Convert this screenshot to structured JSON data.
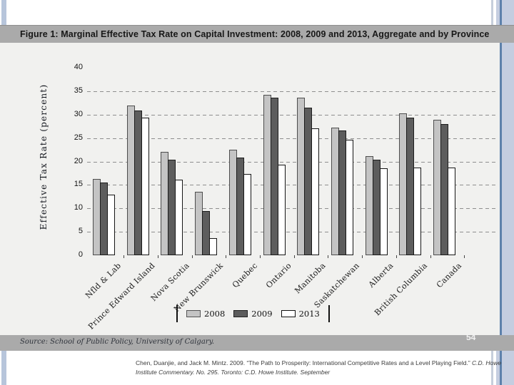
{
  "figure": {
    "title": "Figure 1: Marginal Effective Tax Rate on Capital Investment: 2008, 2009 and 2013, Aggregate and by Province",
    "source_note": "Source: School of Public Policy, University of Calgary."
  },
  "footer": {
    "page_number": "54",
    "citation_normal": "Chen, Duanjie, and Jack M. Mintz. 2009. “The Path to Prosperity: International Competitive Rates and a Level Playing Field.” ",
    "citation_italic": "C.D. Howe Institute Commentary. No. 295. Toronto: C.D. Howe Institute. September"
  },
  "chart_data": {
    "type": "bar",
    "title": "Figure 1: Marginal Effective Tax Rate on Capital Investment: 2008, 2009 and 2013, Aggregate and by Province",
    "xlabel": "",
    "ylabel": "Effective Tax Rate (percent)",
    "ylim": [
      0,
      40
    ],
    "ytick_interval": 5,
    "grid": "horizontal dashed lines at 5 through 35",
    "legend_position": "bottom center",
    "categories": [
      "Nfld & Lab",
      "Prince Edward Island",
      "Nova Scotia",
      "New Brunswick",
      "Quebec",
      "Ontario",
      "Manitoba",
      "Saskatchewan",
      "Alberta",
      "British Columbia",
      "Canada"
    ],
    "series": [
      {
        "name": "2008",
        "color": "#c4c4c4",
        "values": [
          16.3,
          31.9,
          22.1,
          13.6,
          22.5,
          34.3,
          33.6,
          27.3,
          21.2,
          30.2,
          28.9
        ]
      },
      {
        "name": "2009",
        "color": "#5d5d5d",
        "values": [
          15.5,
          30.9,
          20.4,
          9.5,
          20.9,
          33.6,
          31.5,
          26.7,
          20.4,
          29.4,
          28.0
        ]
      },
      {
        "name": "2013",
        "color": "#ffffff",
        "values": [
          13.0,
          29.3,
          16.1,
          3.7,
          17.3,
          19.3,
          27.1,
          24.7,
          18.6,
          18.7,
          18.7
        ]
      }
    ]
  }
}
